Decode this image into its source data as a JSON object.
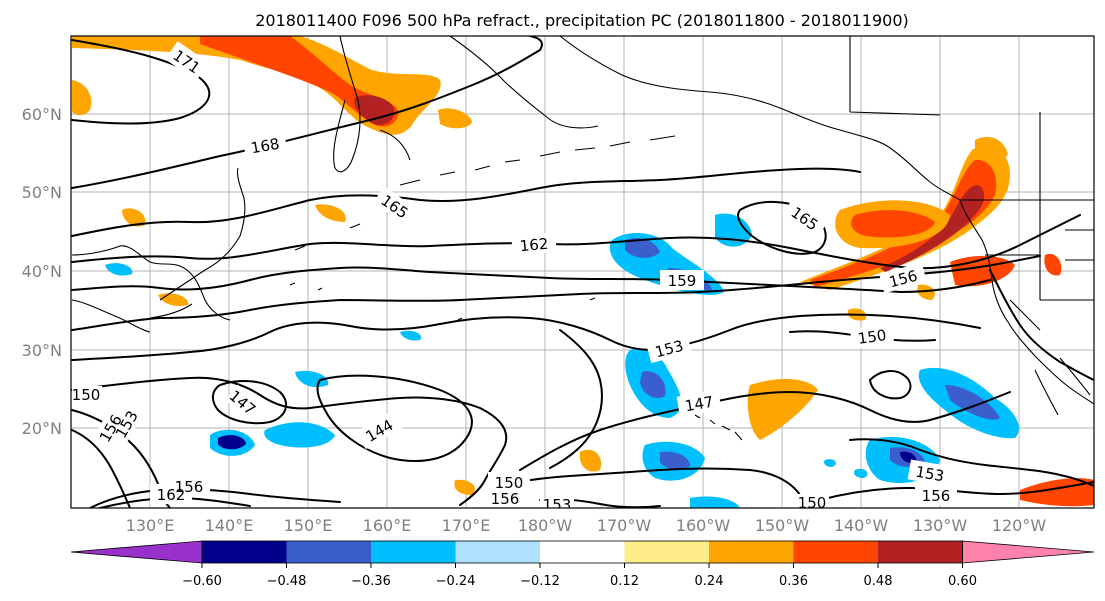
{
  "title": "2018011400 F096 500 hPa refract., precipitation PC (2018011800 - 2018011900)",
  "lat_labels": [
    "60°N",
    "50°N",
    "40°N",
    "30°N",
    "20°N"
  ],
  "lon_labels": [
    "130°E",
    "140°E",
    "150°E",
    "160°E",
    "170°E",
    "180°W",
    "170°W",
    "160°W",
    "150°W",
    "140°W",
    "130°W",
    "120°W"
  ],
  "contour_labels": [
    "171",
    "168",
    "165",
    "162",
    "159",
    "156",
    "153",
    "150",
    "147",
    "144",
    "165",
    "156",
    "150",
    "153",
    "147",
    "153",
    "156",
    "150",
    "156",
    "162",
    "156",
    "150",
    "153"
  ],
  "colorbar": {
    "ticks": [
      "−0.60",
      "−0.48",
      "−0.36",
      "−0.24",
      "−0.12",
      "0.12",
      "0.24",
      "0.36",
      "0.48",
      "0.60"
    ],
    "colors": [
      "#9932cc",
      "#00008b",
      "#3a5fcd",
      "#00bfff",
      "#b0e2ff",
      "#ffffff",
      "#ffec8b",
      "#ffa500",
      "#ff4500",
      "#b22222",
      "#ff82ab"
    ]
  },
  "fill_colors": {
    "neg_light": "#b0e2ff",
    "neg_mid": "#00bfff",
    "neg_strong": "#3a5fcd",
    "neg_max": "#00008b",
    "pos_light": "#ffec8b",
    "pos_mid": "#ffa500",
    "pos_strong": "#ff4500",
    "pos_max": "#b22222"
  }
}
